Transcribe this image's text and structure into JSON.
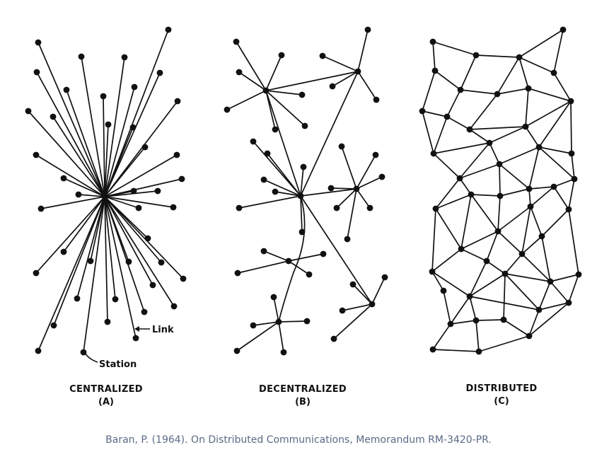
{
  "diagrams": [
    {
      "title": "CENTRALIZED",
      "subtitle": "(A)"
    },
    {
      "title": "DECENTRALIZED",
      "subtitle": "(B)"
    },
    {
      "title": "DISTRIBUTED",
      "subtitle": "(C)"
    }
  ],
  "annotations": {
    "link": "Link",
    "station": "Station"
  },
  "caption": "Baran, P. (1964). On Distributed Communications, Memorandum RM-3420-PR.",
  "colors": {
    "ink": "#111111",
    "caption": "#5a6a86",
    "background": "#ffffff"
  }
}
